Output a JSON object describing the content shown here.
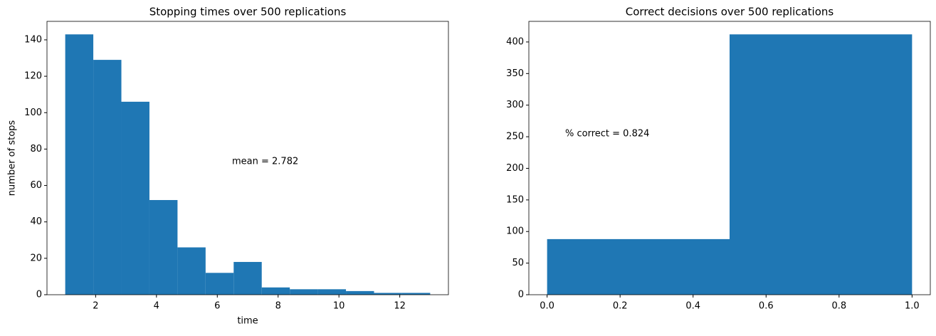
{
  "chart_data": [
    {
      "type": "histogram",
      "title": "Stopping times over 500 replications",
      "x_label": "time",
      "y_label": "number of stops",
      "bins": [
        1,
        1.9231,
        2.8462,
        3.7692,
        4.6923,
        5.6154,
        6.5385,
        7.4615,
        8.3846,
        9.3077,
        10.2308,
        11.1538,
        12.0769,
        13
      ],
      "values": [
        143,
        129,
        106,
        52,
        26,
        12,
        18,
        4,
        3,
        3,
        2,
        1,
        1
      ],
      "color": "#1f77b4",
      "annotation": "mean = 2.782",
      "xlim": [
        0.4,
        13.6
      ],
      "xticks": [
        2,
        4,
        6,
        8,
        10,
        12
      ],
      "ylim": [
        0,
        150.15
      ],
      "yticks": [
        0,
        20,
        40,
        60,
        80,
        100,
        120,
        140
      ]
    },
    {
      "type": "histogram",
      "title": "Correct decisions over 500 replications",
      "bins": [
        0,
        0.5,
        1
      ],
      "values": [
        88,
        412
      ],
      "color": "#1f77b4",
      "annotation": "% correct = 0.824",
      "xlim": [
        -0.05,
        1.05
      ],
      "xticks": [
        {
          "value": 0,
          "label": "0.0"
        },
        {
          "value": 0.2,
          "label": "0.2"
        },
        {
          "value": 0.4,
          "label": "0.4"
        },
        {
          "value": 0.6,
          "label": "0.6"
        },
        {
          "value": 0.8,
          "label": "0.8"
        },
        {
          "value": 1,
          "label": "1.0"
        }
      ],
      "ylim": [
        0,
        432.6
      ],
      "yticks": [
        0,
        50,
        100,
        150,
        200,
        250,
        300,
        350,
        400
      ]
    }
  ]
}
